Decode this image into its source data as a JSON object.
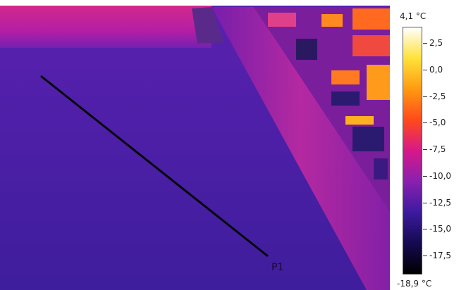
{
  "image": {
    "description_type": "thermal-camera-image",
    "line_label": "P1"
  },
  "scale": {
    "max_label": "4,1 °C",
    "min_label": "-18,9 °C",
    "ticks": [
      "2,5",
      "0,0",
      "-2,5",
      "-5,0",
      "-7,5",
      "-10,0",
      "-12,5",
      "-15,0",
      "-17,5"
    ],
    "colors": [
      "#ffffff",
      "#ffe23a",
      "#ff9a10",
      "#ff4a1a",
      "#d8188a",
      "#8a20b0",
      "#3c1aa0",
      "#150a50",
      "#000000"
    ]
  }
}
